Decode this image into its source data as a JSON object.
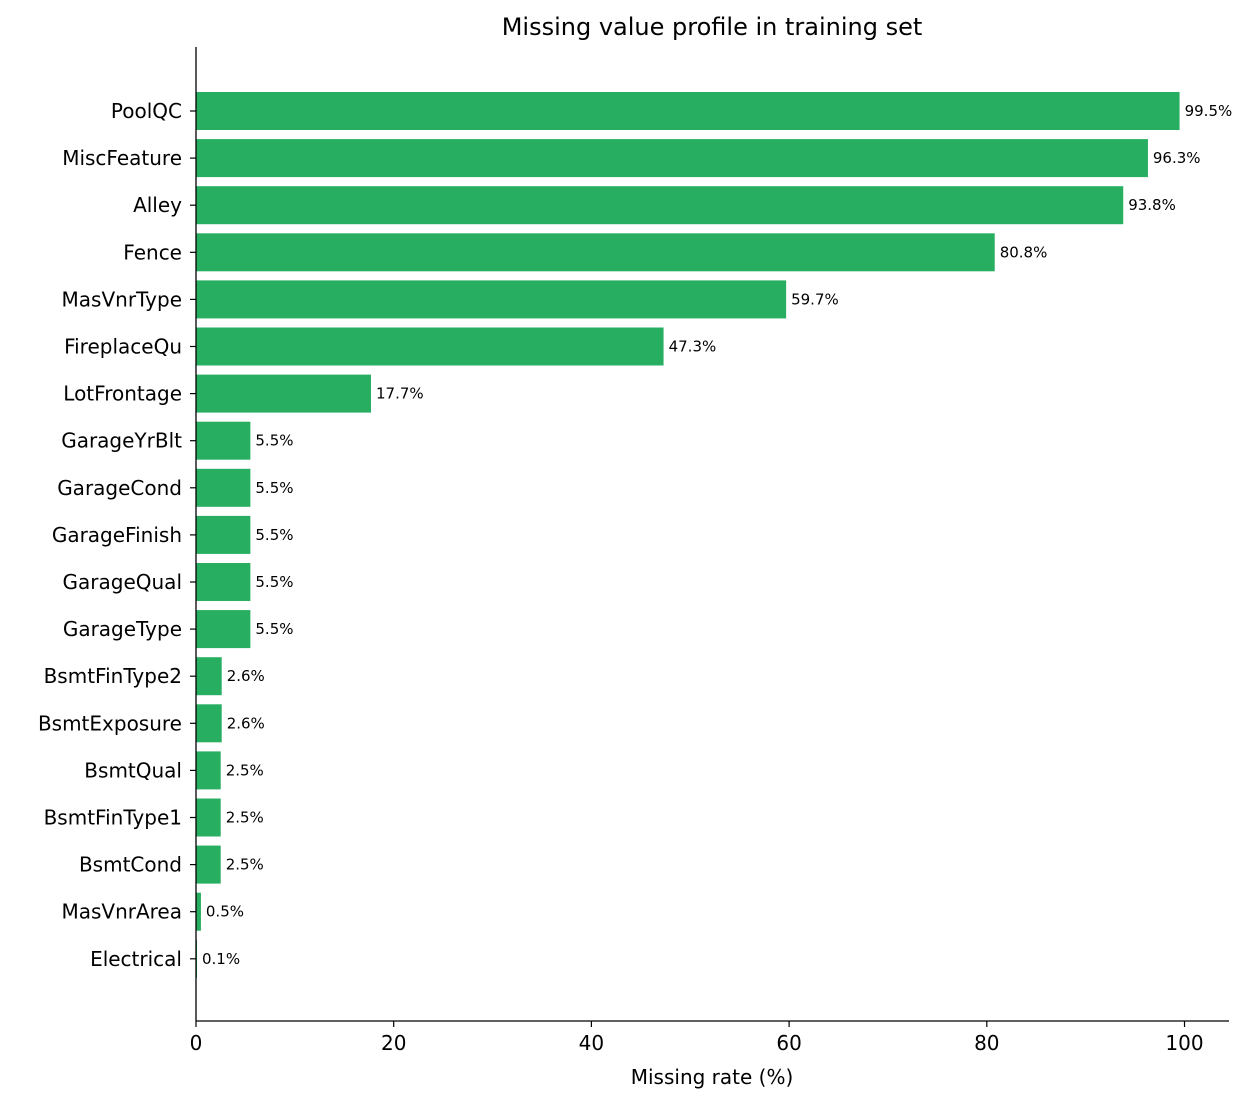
{
  "chart_data": {
    "type": "bar",
    "orientation": "horizontal",
    "title": "Missing value profile in training set",
    "xlabel": "Missing rate (%)",
    "ylabel": "",
    "xlim": [
      0,
      104.5
    ],
    "xticks": [
      0,
      20,
      40,
      60,
      80,
      100
    ],
    "grid": false,
    "bar_color": "#27ae60",
    "categories": [
      "PoolQC",
      "MiscFeature",
      "Alley",
      "Fence",
      "MasVnrType",
      "FireplaceQu",
      "LotFrontage",
      "GarageYrBlt",
      "GarageCond",
      "GarageFinish",
      "GarageQual",
      "GarageType",
      "BsmtFinType2",
      "BsmtExposure",
      "BsmtQual",
      "BsmtFinType1",
      "BsmtCond",
      "MasVnrArea",
      "Electrical"
    ],
    "values": [
      99.5,
      96.3,
      93.8,
      80.8,
      59.7,
      47.3,
      17.7,
      5.5,
      5.5,
      5.5,
      5.5,
      5.5,
      2.6,
      2.6,
      2.5,
      2.5,
      2.5,
      0.5,
      0.1
    ],
    "data_labels": [
      "99.5%",
      "96.3%",
      "93.8%",
      "80.8%",
      "59.7%",
      "47.3%",
      "17.7%",
      "5.5%",
      "5.5%",
      "5.5%",
      "5.5%",
      "5.5%",
      "2.6%",
      "2.6%",
      "2.5%",
      "2.5%",
      "2.5%",
      "0.5%",
      "0.1%"
    ]
  }
}
